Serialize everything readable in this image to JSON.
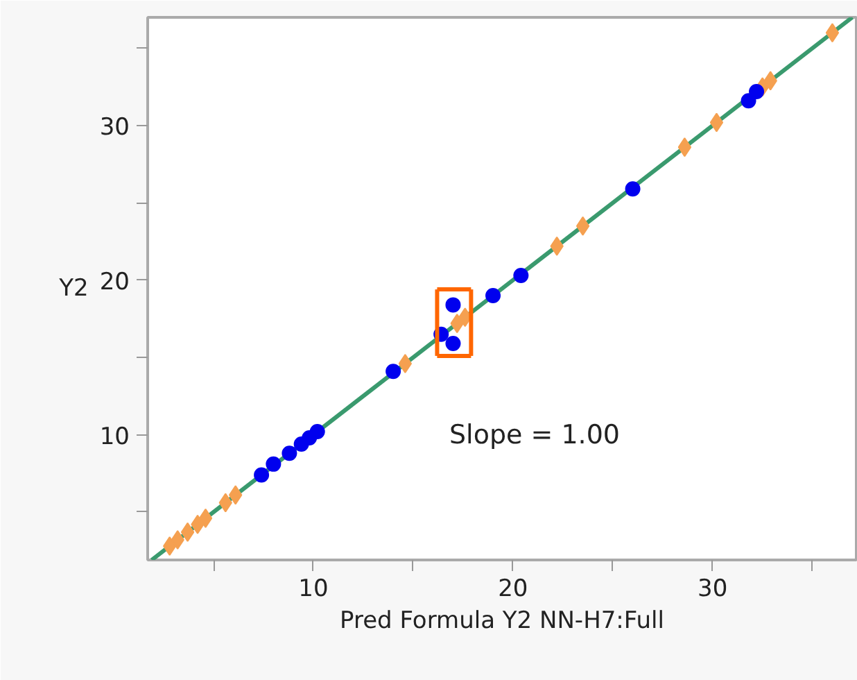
{
  "chart_data": {
    "type": "scatter",
    "xlabel": "Pred Formula Y2 NN-H7:Full",
    "ylabel": "Y2",
    "xlim": [
      1.7,
      37.2
    ],
    "ylim": [
      1.9,
      37.0
    ],
    "xticks": [
      {
        "value": 5,
        "label": null
      },
      10,
      {
        "value": 15,
        "label": null
      },
      20,
      {
        "value": 25,
        "label": null
      },
      30,
      {
        "value": 35,
        "label": null
      }
    ],
    "yticks": [
      {
        "value": 5,
        "label": null
      },
      10,
      {
        "value": 15,
        "label": null
      },
      20,
      {
        "value": 25,
        "label": null
      },
      30,
      {
        "value": 35,
        "label": null
      }
    ],
    "grid": false,
    "series": [
      {
        "type": "line",
        "color": "#3a9a6e",
        "line_style": "solid",
        "marker": "none",
        "x": [
          1.9,
          37.0
        ],
        "values": [
          1.9,
          37.0
        ]
      },
      {
        "type": "scatter",
        "color": "#f5a050",
        "marker": "diamond",
        "x": [
          2.8,
          3.2,
          3.7,
          4.2,
          4.6,
          5.6,
          6.1,
          14.6,
          17.2,
          17.6,
          22.2,
          23.5,
          28.6,
          30.2,
          32.5,
          32.9,
          36.0
        ],
        "values": [
          2.8,
          3.2,
          3.7,
          4.2,
          4.6,
          5.6,
          6.1,
          14.6,
          17.2,
          17.6,
          22.2,
          23.5,
          28.6,
          30.2,
          32.5,
          32.9,
          36.0
        ]
      },
      {
        "type": "scatter",
        "color": "#0000ee",
        "marker": "circle",
        "x": [
          7.4,
          8.0,
          8.8,
          9.4,
          9.8,
          10.2,
          14.0,
          16.4,
          17.0,
          17.0,
          19.0,
          20.4,
          26.0,
          31.8,
          32.2
        ],
        "values": [
          7.4,
          8.1,
          8.8,
          9.4,
          9.8,
          10.2,
          14.1,
          16.5,
          15.9,
          18.4,
          19.0,
          20.3,
          25.9,
          31.6,
          32.2
        ]
      },
      {
        "type": "line",
        "color": "#ff6600",
        "line_style": "solid",
        "marker": "none",
        "x": [
          16.2,
          17.9
        ],
        "values": [
          15.1,
          15.1
        ]
      },
      {
        "type": "line",
        "color": "#ff6600",
        "line_style": "solid",
        "marker": "none",
        "x": [
          17.9,
          17.9
        ],
        "values": [
          15.1,
          19.4
        ]
      },
      {
        "type": "line",
        "color": "#ff6600",
        "line_style": "solid",
        "marker": "none",
        "x": [
          17.9,
          16.2
        ],
        "values": [
          19.4,
          19.4
        ]
      },
      {
        "type": "line",
        "color": "#ff6600",
        "line_style": "solid",
        "marker": "none",
        "x": [
          16.2,
          16.2
        ],
        "values": [
          19.4,
          15.1
        ]
      }
    ],
    "annotations": [
      "Slope = 1.00"
    ]
  }
}
